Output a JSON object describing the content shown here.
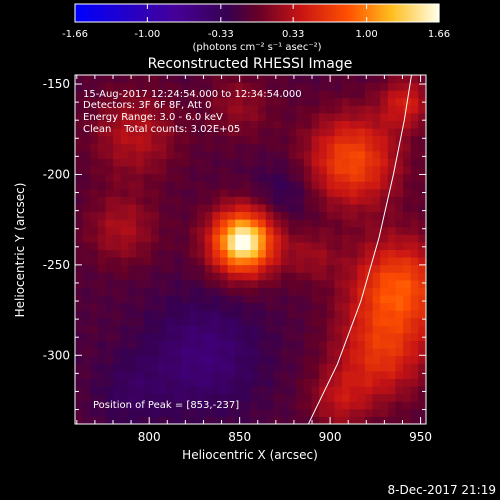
{
  "colorbar": {
    "tick_labels": [
      "-1.66",
      "-1.00",
      "-0.33",
      "0.33",
      "1.00",
      "1.66"
    ],
    "tick_values": [
      -1.66,
      -1.0,
      -0.33,
      0.33,
      1.0,
      1.66
    ],
    "range": [
      -1.66,
      1.66
    ],
    "unit_label": "(photons cm⁻² s⁻¹ asec⁻²)",
    "colormap": "rainbow-style: blue → purple → red → orange → yellow → white"
  },
  "chart_data": {
    "type": "heatmap",
    "title": "Reconstructed RHESSI Image",
    "xlabel": "Heliocentric X (arcsec)",
    "ylabel": "Heliocentric Y (arcsec)",
    "xlim": [
      759,
      953
    ],
    "ylim": [
      -338,
      -145
    ],
    "x_ticks": [
      800,
      850,
      900,
      950
    ],
    "y_ticks": [
      -150,
      -200,
      -250,
      -300
    ],
    "x_tick_labels": [
      "800",
      "850",
      "900",
      "950"
    ],
    "y_tick_labels": [
      "-150",
      "-200",
      "-250",
      "-300"
    ],
    "annotations": [
      "15-Aug-2017 12:24:54.000 to 12:34:54.000",
      "Detectors: 3F 6F 8F, Att 0",
      "Energy Range: 3.0 - 6.0 keV",
      "Clean    Total counts: 3.02E+05"
    ],
    "peak_label": "Position of Peak = [853,-237]",
    "peak": {
      "x": 853,
      "y": -237,
      "value": 1.66
    },
    "sources": [
      {
        "x": 852,
        "y": -237,
        "sigma": 13,
        "amp": 1.6
      },
      {
        "x": 852,
        "y": -237,
        "sigma": 5,
        "amp": 0.35
      },
      {
        "x": 912,
        "y": -192,
        "sigma": 18,
        "amp": 0.88
      },
      {
        "x": 938,
        "y": -262,
        "sigma": 19,
        "amp": 0.92
      },
      {
        "x": 928,
        "y": -300,
        "sigma": 18,
        "amp": 0.65
      },
      {
        "x": 942,
        "y": -160,
        "sigma": 10,
        "amp": 0.55
      },
      {
        "x": 792,
        "y": -178,
        "sigma": 17,
        "amp": 0.45
      },
      {
        "x": 785,
        "y": -230,
        "sigma": 14,
        "amp": 0.4
      },
      {
        "x": 850,
        "y": -162,
        "sigma": 13,
        "amp": 0.3
      },
      {
        "x": 890,
        "y": -245,
        "sigma": 10,
        "amp": 0.3
      },
      {
        "x": 905,
        "y": -325,
        "sigma": 12,
        "amp": 0.4
      },
      {
        "x": 830,
        "y": -300,
        "sigma": 22,
        "amp": -0.4
      },
      {
        "x": 875,
        "y": -210,
        "sigma": 12,
        "amp": -0.25
      },
      {
        "x": 790,
        "y": -320,
        "sigma": 14,
        "amp": -0.2
      }
    ],
    "background_level": -0.12,
    "limb_curve": [
      [
        888,
        -338
      ],
      [
        904,
        -305
      ],
      [
        917,
        -270
      ],
      [
        927,
        -235
      ],
      [
        935,
        -200
      ],
      [
        941,
        -170
      ],
      [
        945,
        -145
      ]
    ],
    "grid": false,
    "colorbar_position": "top"
  },
  "footer": {
    "timestamp": "8-Dec-2017 21:19"
  }
}
